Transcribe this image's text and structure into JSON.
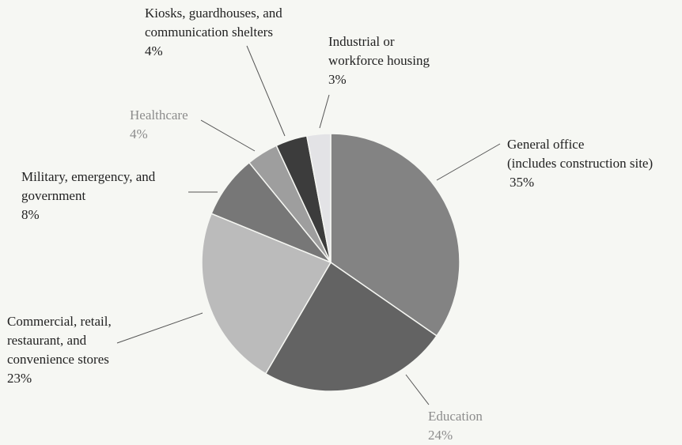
{
  "chart_data": {
    "type": "pie",
    "title": "",
    "slices": [
      {
        "label": "General office (includes construction site)",
        "label_lines": [
          "General office",
          "(includes construction site)"
        ],
        "value": 35,
        "value_label": "35%",
        "color": "#838383",
        "text_color": "#222222"
      },
      {
        "label": "Education",
        "label_lines": [
          "Education"
        ],
        "value": 24,
        "value_label": "24%",
        "color": "#636363",
        "text_color": "#8c8c8c"
      },
      {
        "label": "Commercial, retail, restaurant, and convenience stores",
        "label_lines": [
          "Commercial, retail,",
          "restaurant, and",
          "convenience stores"
        ],
        "value": 23,
        "value_label": "23%",
        "color": "#bbbbbb",
        "text_color": "#222222"
      },
      {
        "label": "Military, emergency, and government",
        "label_lines": [
          "Military, emergency, and",
          "government"
        ],
        "value": 8,
        "value_label": "8%",
        "color": "#777777",
        "text_color": "#222222"
      },
      {
        "label": "Healthcare",
        "label_lines": [
          "Healthcare"
        ],
        "value": 4,
        "value_label": "4%",
        "color": "#9e9e9e",
        "text_color": "#8c8c8c"
      },
      {
        "label": "Kiosks, guardhouses, and communication shelters",
        "label_lines": [
          "Kiosks, guardhouses, and",
          "communication shelters"
        ],
        "value": 4,
        "value_label": "4%",
        "color": "#3c3c3c",
        "text_color": "#222222"
      },
      {
        "label": "Industrial or workforce housing",
        "label_lines": [
          "Industrial or",
          "workforce housing"
        ],
        "value": 3,
        "value_label": "3%",
        "color": "#e3e3e6",
        "text_color": "#222222"
      }
    ]
  }
}
